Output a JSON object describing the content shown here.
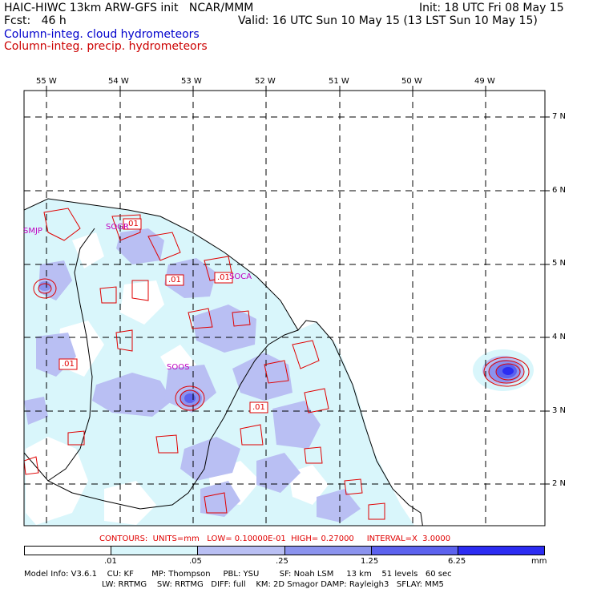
{
  "header": {
    "title_left": "HAIC-HIWC 13km ARW-GFS init   NCAR/MMM",
    "init": "Init: 18 UTC Fri 08 May 15",
    "fcst": "Fcst:   46 h",
    "valid": "Valid: 16 UTC Sun 10 May 15 (13 LST Sun 10 May 15)",
    "field_cloud": "Column-integ. cloud hydrometeors",
    "field_precip": "Column-integ. precip. hydrometeors"
  },
  "colors": {
    "cloud_label": "#0000cc",
    "precip_label": "#cc0000",
    "shade_1": "#d9f6fb",
    "shade_2": "#b9bff3",
    "shade_3": "#8b93ee",
    "shade_4": "#5c62ee",
    "shade_5": "#2c2cf2",
    "contour": "#e00000",
    "station": "#c000c0"
  },
  "longitude_labels": [
    "55 W",
    "54 W",
    "53 W",
    "52 W",
    "51 W",
    "50 W",
    "49 W"
  ],
  "latitude_labels": [
    "7 N",
    "6 N",
    "5 N",
    "4 N",
    "3 N",
    "2 N"
  ],
  "stations": [
    "SMJP",
    "SOGR",
    "SOCA",
    "SOOS"
  ],
  "contour_labels": [
    ".01",
    ".01",
    ".01",
    ".01",
    ".01"
  ],
  "contour_info": "CONTOURS:  UNITS=mm   LOW= 0.10000E-01  HIGH= 0.27000     INTERVAL=X  3.0000",
  "colorbar": {
    "ticks": [
      ".01",
      ".05",
      ".25",
      "1.25",
      "6.25"
    ],
    "units": "mm"
  },
  "model_info": {
    "line1": "Model Info: V3.6.1    CU: KF       MP: Thompson     PBL: YSU        SF: Noah LSM     13 km    51 levels   60 sec",
    "line2": "LW: RRTMG    SW: RRTMG   DIFF: full    KM: 2D Smagor DAMP: Rayleigh3   SFLAY: MM5"
  }
}
